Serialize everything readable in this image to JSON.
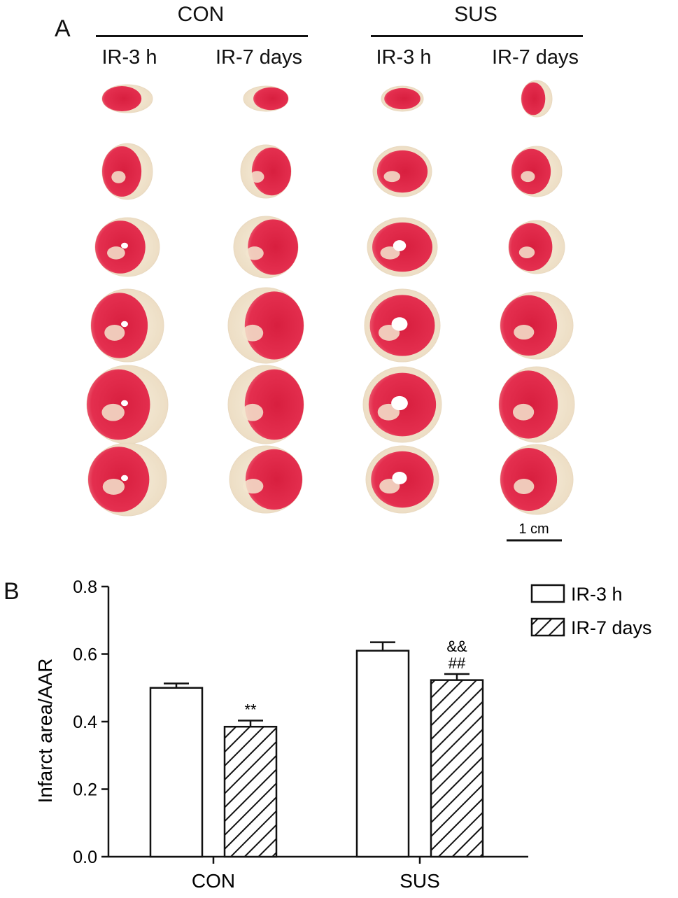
{
  "panel_a": {
    "letter": "A",
    "groups": [
      {
        "name": "CON",
        "columns": [
          "IR-3 h",
          "IR-7 days"
        ]
      },
      {
        "name": "SUS",
        "columns": [
          "IR-3 h",
          "IR-7 days"
        ]
      }
    ],
    "slices_per_column": 6,
    "scale_bar_label": "1 cm",
    "colors": {
      "viable_tissue": "#e0284a",
      "infarct_tissue": "#f2e8d2"
    }
  },
  "panel_b": {
    "letter": "B"
  },
  "chart_data": {
    "type": "bar",
    "categories": [
      "CON",
      "SUS"
    ],
    "series": [
      {
        "name": "IR-3 h",
        "values": [
          0.5,
          0.61
        ],
        "errors": [
          0.013,
          0.025
        ],
        "fill": "open",
        "annotations": [
          "",
          ""
        ]
      },
      {
        "name": "IR-7 days",
        "values": [
          0.385,
          0.523
        ],
        "errors": [
          0.018,
          0.018
        ],
        "fill": "hatched",
        "annotations": [
          "**",
          "&&\n##"
        ]
      }
    ],
    "ylabel": "Infarct area/AAR",
    "xlabel": "",
    "ylim": [
      0,
      0.8
    ],
    "yticks": [
      "0.0",
      "0.2",
      "0.4",
      "0.6",
      "0.8"
    ],
    "legend_position": "top-right",
    "grid": false
  }
}
